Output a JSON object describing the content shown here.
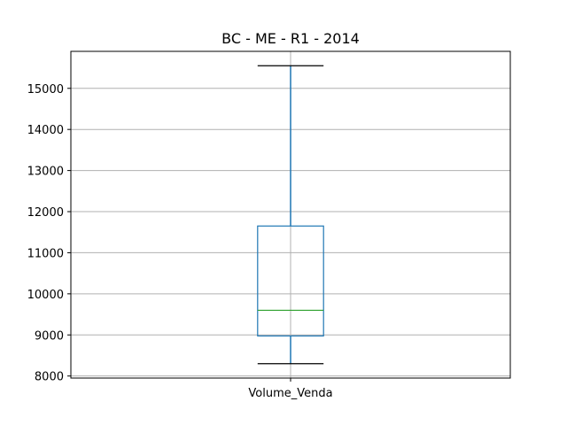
{
  "chart_data": {
    "type": "box",
    "title": "BC - ME - R1 - 2014",
    "categories": [
      "Volume_Venda"
    ],
    "boxes": [
      {
        "name": "Volume_Venda",
        "whisker_low": 8300,
        "q1": 8975,
        "median": 9600,
        "q3": 11650,
        "whisker_high": 15550
      }
    ],
    "ylim": [
      7950,
      15900
    ],
    "yticks": [
      8000,
      9000,
      10000,
      11000,
      12000,
      13000,
      14000,
      15000
    ],
    "grid": true,
    "colors": {
      "box": "#1f77b4",
      "median": "#2ca02c",
      "whisker_cap": "#000000",
      "grid": "#b0b0b0"
    }
  }
}
